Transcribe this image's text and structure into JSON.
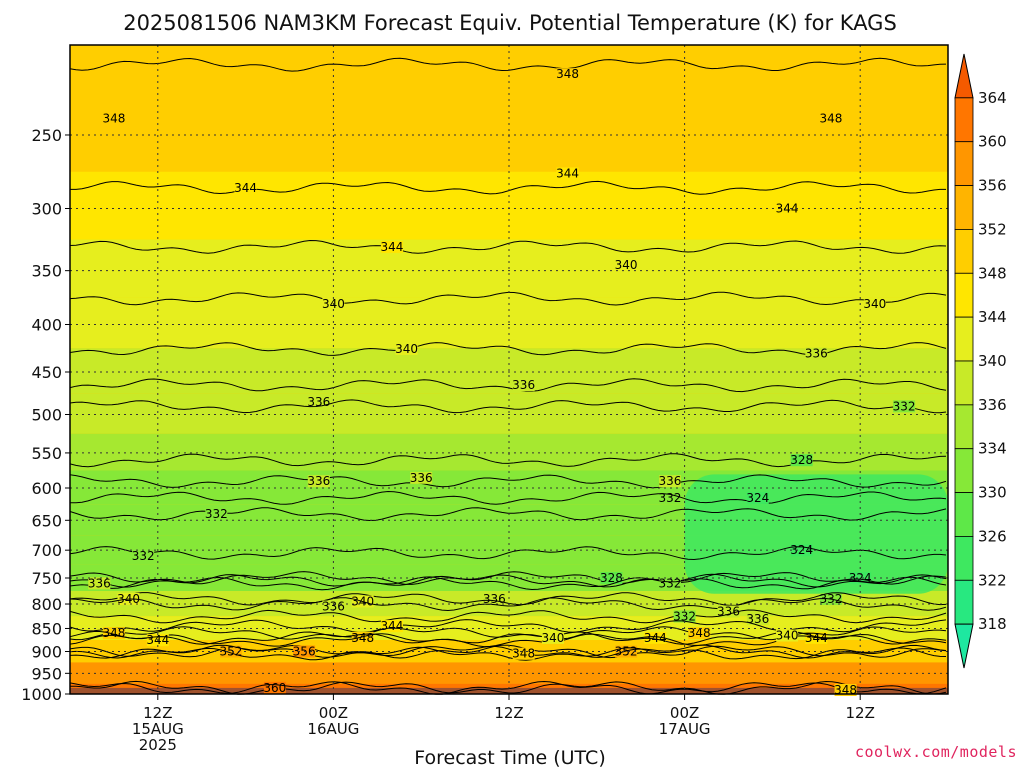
{
  "chart_data": {
    "type": "heatmap",
    "title": "2025081506 NAM3KM Forecast Equiv. Potential Temperature (K) for KAGS",
    "xlabel": "Forecast Time (UTC)",
    "ylabel": "",
    "y_axis": {
      "scale": "log",
      "reversed": true,
      "ylim": [
        1000,
        200
      ],
      "ticks": [
        250,
        300,
        350,
        400,
        450,
        500,
        550,
        600,
        650,
        700,
        750,
        800,
        850,
        900,
        950,
        1000
      ]
    },
    "x_axis": {
      "xlim": [
        6,
        66
      ],
      "ticks": [
        {
          "x": 12,
          "lines": [
            "12Z",
            "15AUG",
            "2025"
          ]
        },
        {
          "x": 24,
          "lines": [
            "00Z",
            "16AUG"
          ]
        },
        {
          "x": 36,
          "lines": [
            "12Z"
          ]
        },
        {
          "x": 48,
          "lines": [
            "00Z",
            "17AUG"
          ]
        },
        {
          "x": 60,
          "lines": [
            "12Z"
          ]
        }
      ]
    },
    "grid": true,
    "colorbar": {
      "levels": [
        318,
        322,
        326,
        330,
        334,
        336,
        340,
        344,
        348,
        352,
        356,
        360,
        364
      ],
      "colors": [
        "#1ee8a0",
        "#28e880",
        "#3ee860",
        "#5ee848",
        "#86e838",
        "#a6e830",
        "#c8ea28",
        "#e6ee1e",
        "#ffe600",
        "#ffce00",
        "#ffb400",
        "#ff9600",
        "#ff7600",
        "#f55a00"
      ]
    },
    "bands": [
      {
        "p": 200,
        "theta": 350
      },
      {
        "p": 250,
        "theta": 348
      },
      {
        "p": 300,
        "theta": 346
      },
      {
        "p": 350,
        "theta": 343
      },
      {
        "p": 400,
        "theta": 341
      },
      {
        "p": 450,
        "theta": 339
      },
      {
        "p": 500,
        "theta": 336
      },
      {
        "p": 550,
        "theta": 334
      },
      {
        "p": 600,
        "theta": 333
      },
      {
        "p": 650,
        "theta": 331
      },
      {
        "p": 700,
        "theta": 330
      },
      {
        "p": 750,
        "theta": 332
      },
      {
        "p": 800,
        "theta": 337
      },
      {
        "p": 850,
        "theta": 342
      },
      {
        "p": 900,
        "theta": 350
      },
      {
        "p": 950,
        "theta": 356
      },
      {
        "p": 1000,
        "theta": 360
      }
    ],
    "cold_pocket": {
      "x_start": 48,
      "x_end": 66,
      "p_top": 580,
      "p_bottom": 780,
      "theta": 324
    },
    "contours": [
      {
        "theta": 348,
        "p": 210,
        "labels": [
          {
            "x": 9,
            "p": 240
          },
          {
            "x": 40,
            "p": 215
          },
          {
            "x": 58,
            "p": 240
          }
        ]
      },
      {
        "theta": 344,
        "p": 285,
        "labels": [
          {
            "x": 18,
            "p": 285
          },
          {
            "x": 40,
            "p": 275
          },
          {
            "x": 55,
            "p": 300
          }
        ]
      },
      {
        "theta": 344,
        "p": 330,
        "labels": [
          {
            "x": 28,
            "p": 330
          }
        ]
      },
      {
        "theta": 340,
        "p": 375,
        "labels": [
          {
            "x": 24,
            "p": 380
          },
          {
            "x": 44,
            "p": 345
          },
          {
            "x": 61,
            "p": 380
          }
        ]
      },
      {
        "theta": 340,
        "p": 425,
        "labels": [
          {
            "x": 29,
            "p": 425
          }
        ]
      },
      {
        "theta": 336,
        "p": 465,
        "labels": [
          {
            "x": 23,
            "p": 485
          },
          {
            "x": 37,
            "p": 465
          },
          {
            "x": 57,
            "p": 430
          }
        ]
      },
      {
        "theta": 332,
        "p": 490,
        "labels": [
          {
            "x": 63,
            "p": 490
          }
        ]
      },
      {
        "theta": 336,
        "p": 590,
        "labels": [
          {
            "x": 23,
            "p": 590
          },
          {
            "x": 30,
            "p": 585
          },
          {
            "x": 47,
            "p": 590
          }
        ]
      },
      {
        "theta": 332,
        "p": 640,
        "labels": [
          {
            "x": 16,
            "p": 640
          },
          {
            "x": 47,
            "p": 615
          }
        ]
      },
      {
        "theta": 328,
        "p": 560,
        "labels": [
          {
            "x": 56,
            "p": 560
          }
        ]
      },
      {
        "theta": 324,
        "p": 615,
        "labels": [
          {
            "x": 53,
            "p": 615
          },
          {
            "x": 56,
            "p": 700
          },
          {
            "x": 60,
            "p": 750
          }
        ]
      },
      {
        "theta": 332,
        "p": 705,
        "labels": [
          {
            "x": 11,
            "p": 710
          }
        ]
      },
      {
        "theta": 328,
        "p": 750,
        "labels": [
          {
            "x": 43,
            "p": 750
          }
        ]
      },
      {
        "theta": 332,
        "p": 755,
        "labels": [
          {
            "x": 47,
            "p": 760
          },
          {
            "x": 58,
            "p": 790
          }
        ]
      },
      {
        "theta": 336,
        "p": 760,
        "labels": [
          {
            "x": 8,
            "p": 760
          },
          {
            "x": 35,
            "p": 790
          }
        ]
      },
      {
        "theta": 340,
        "p": 790,
        "labels": [
          {
            "x": 10,
            "p": 790
          },
          {
            "x": 26,
            "p": 795
          }
        ]
      },
      {
        "theta": 336,
        "p": 800,
        "labels": [
          {
            "x": 24,
            "p": 805
          },
          {
            "x": 51,
            "p": 815
          },
          {
            "x": 53,
            "p": 830
          }
        ]
      },
      {
        "theta": 332,
        "p": 825,
        "labels": [
          {
            "x": 48,
            "p": 825
          }
        ]
      },
      {
        "theta": 344,
        "p": 845,
        "labels": [
          {
            "x": 28,
            "p": 845
          },
          {
            "x": 46,
            "p": 870
          },
          {
            "x": 57,
            "p": 870
          }
        ]
      },
      {
        "theta": 348,
        "p": 860,
        "labels": [
          {
            "x": 9,
            "p": 860
          },
          {
            "x": 26,
            "p": 870
          },
          {
            "x": 49,
            "p": 860
          }
        ]
      },
      {
        "theta": 344,
        "p": 875,
        "labels": [
          {
            "x": 12,
            "p": 875
          }
        ]
      },
      {
        "theta": 340,
        "p": 870,
        "labels": [
          {
            "x": 39,
            "p": 870
          },
          {
            "x": 55,
            "p": 865
          }
        ]
      },
      {
        "theta": 352,
        "p": 900,
        "labels": [
          {
            "x": 17,
            "p": 900
          },
          {
            "x": 44,
            "p": 900
          }
        ]
      },
      {
        "theta": 356,
        "p": 900,
        "labels": [
          {
            "x": 22,
            "p": 900
          }
        ]
      },
      {
        "theta": 348,
        "p": 905,
        "labels": [
          {
            "x": 37,
            "p": 905
          }
        ]
      },
      {
        "theta": 360,
        "p": 985,
        "labels": [
          {
            "x": 20,
            "p": 985
          }
        ]
      },
      {
        "theta": 348,
        "p": 985,
        "labels": [
          {
            "x": 59,
            "p": 990
          }
        ]
      }
    ]
  },
  "credit": "coolwx.com/models"
}
